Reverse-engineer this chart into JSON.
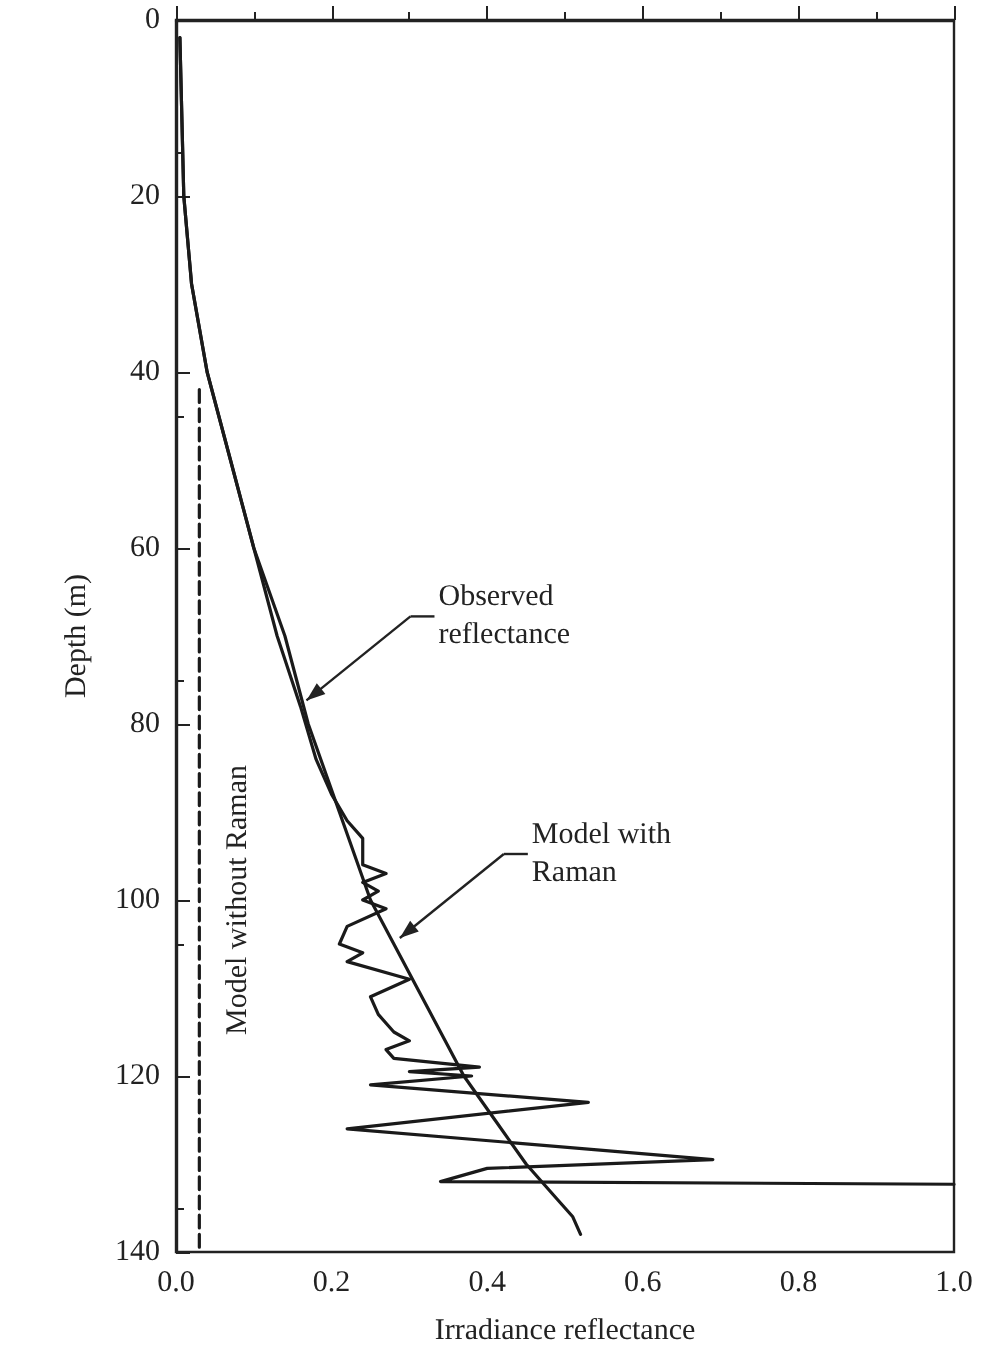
{
  "chart_data": {
    "type": "line",
    "xlabel": "Irradiance reflectance",
    "ylabel": "Depth (m)",
    "xlim": [
      0,
      1
    ],
    "xticks": [
      {
        "value": 0,
        "label": "0.0"
      },
      {
        "value": 0.2,
        "label": "0.2"
      },
      {
        "value": 0.4,
        "label": "0.4"
      },
      {
        "value": 0.6,
        "label": "0.6"
      },
      {
        "value": 0.8,
        "label": "0.8"
      },
      {
        "value": 1,
        "label": "1.0"
      }
    ],
    "ylim": [
      140,
      0
    ],
    "yticks": [
      0,
      20,
      40,
      60,
      80,
      100,
      120,
      140
    ],
    "grid": false,
    "marker": "none",
    "series": [
      {
        "color": "#1a1a1a",
        "line_style": "solid",
        "x": [
          0.005,
          0.01,
          0.02,
          0.04,
          0.07,
          0.1,
          0.13,
          0.16,
          0.18,
          0.2,
          0.22,
          0.24,
          0.24,
          0.27,
          0.24,
          0.26,
          0.24,
          0.27,
          0.22,
          0.21,
          0.24,
          0.22,
          0.3,
          0.25,
          0.26,
          0.28,
          0.3,
          0.27,
          0.28,
          0.39,
          0.3,
          0.38,
          0.25,
          0.53,
          0.22,
          0.69,
          0.4,
          0.34,
          1.0
        ],
        "values": [
          2,
          20,
          30,
          40,
          50,
          60,
          70,
          78,
          84,
          88,
          91,
          93,
          96,
          97,
          98,
          99,
          100,
          101,
          103,
          105,
          106,
          107,
          109,
          111,
          113,
          115,
          116,
          117,
          118,
          119,
          119.5,
          120,
          121,
          123,
          126,
          129.5,
          130.5,
          132,
          132.3
        ]
      },
      {
        "color": "#1a1a1a",
        "line_style": "solid",
        "x": [
          0.005,
          0.01,
          0.02,
          0.04,
          0.07,
          0.1,
          0.14,
          0.17,
          0.21,
          0.25,
          0.28,
          0.31,
          0.34,
          0.37,
          0.41,
          0.45,
          0.49,
          0.51,
          0.52
        ],
        "values": [
          2,
          20,
          30,
          40,
          50,
          60,
          70,
          80,
          90,
          100,
          105,
          110,
          115,
          120,
          125,
          130,
          134,
          136,
          138
        ]
      },
      {
        "color": "#1a1a1a",
        "line_style": "dashed",
        "x": [
          0.03,
          0.03
        ],
        "values": [
          42,
          140
        ]
      }
    ],
    "annotations": [
      {
        "text": "Observed reflectance",
        "x": 0.16,
        "y": 78
      },
      {
        "text": "Model with Raman",
        "x": 0.28,
        "y": 105
      },
      {
        "text": "Model without Raman",
        "x": 0.03,
        "y": 100
      }
    ]
  }
}
